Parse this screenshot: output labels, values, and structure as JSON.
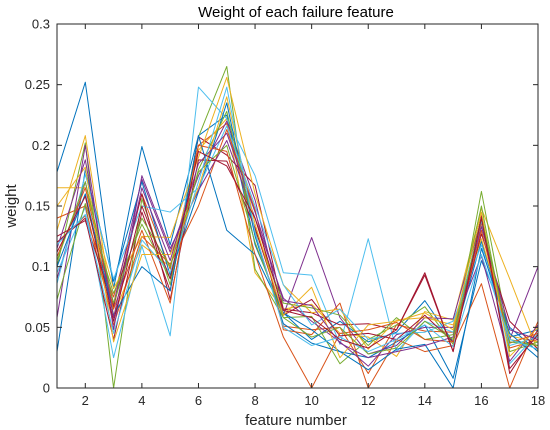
{
  "chart_data": {
    "type": "line",
    "title": "Weight of each failure feature",
    "xlabel": "feature number",
    "ylabel": "weight",
    "xlim": [
      1,
      18
    ],
    "ylim": [
      0,
      0.3
    ],
    "xticks": [
      2,
      4,
      6,
      8,
      10,
      12,
      14,
      16,
      18
    ],
    "yticks": [
      0,
      0.05,
      0.1,
      0.15,
      0.2,
      0.25,
      0.3
    ],
    "ytick_labels": [
      "0",
      "0.05",
      "0.1",
      "0.15",
      "0.2",
      "0.25",
      "0.3"
    ],
    "grid": false,
    "box": true,
    "x": [
      1,
      2,
      3,
      4,
      5,
      6,
      7,
      8,
      9,
      10,
      11,
      12,
      13,
      14,
      15,
      16,
      17,
      18
    ],
    "series": [
      {
        "color": "#0072BD",
        "values": [
          0.178,
          0.252,
          0.082,
          0.199,
          0.118,
          0.208,
          0.225,
          0.118,
          0.062,
          0.04,
          0.055,
          0.038,
          0.046,
          0.072,
          0.038,
          0.121,
          0.042,
          0.048
        ]
      },
      {
        "color": "#D95319",
        "values": [
          0.12,
          0.142,
          0.075,
          0.16,
          0.098,
          0.2,
          0.218,
          0.128,
          0.051,
          0.048,
          0.05,
          0.012,
          0.052,
          0.047,
          0.046,
          0.136,
          0.033,
          0.04
        ]
      },
      {
        "color": "#EDB120",
        "values": [
          0.13,
          0.208,
          0.06,
          0.118,
          0.1,
          0.196,
          0.222,
          0.095,
          0.065,
          0.069,
          0.045,
          0.042,
          0.026,
          0.063,
          0.056,
          0.148,
          0.09,
          0.03
        ]
      },
      {
        "color": "#7E2F8E",
        "values": [
          0.09,
          0.17,
          0.069,
          0.172,
          0.112,
          0.175,
          0.22,
          0.155,
          0.06,
          0.124,
          0.058,
          0.028,
          0.035,
          0.058,
          0.057,
          0.139,
          0.04,
          0.1
        ]
      },
      {
        "color": "#77AC30",
        "values": [
          0.1,
          0.202,
          0.0,
          0.156,
          0.085,
          0.207,
          0.265,
          0.098,
          0.058,
          0.059,
          0.02,
          0.04,
          0.052,
          0.067,
          0.036,
          0.162,
          0.04,
          0.035
        ]
      },
      {
        "color": "#4DBEEE",
        "values": [
          0.095,
          0.149,
          0.025,
          0.117,
          0.043,
          0.248,
          0.222,
          0.175,
          0.095,
          0.093,
          0.036,
          0.123,
          0.03,
          0.055,
          0.046,
          0.138,
          0.02,
          0.045
        ]
      },
      {
        "color": "#A2142F",
        "values": [
          0.12,
          0.14,
          0.04,
          0.145,
          0.08,
          0.207,
          0.192,
          0.167,
          0.065,
          0.062,
          0.052,
          0.053,
          0.048,
          0.095,
          0.03,
          0.142,
          0.012,
          0.048
        ]
      },
      {
        "color": "#0072BD",
        "values": [
          0.03,
          0.18,
          0.088,
          0.17,
          0.093,
          0.162,
          0.235,
          0.125,
          0.053,
          0.037,
          0.03,
          0.025,
          0.038,
          0.052,
          0.008,
          0.105,
          0.05,
          0.03
        ]
      },
      {
        "color": "#D95319",
        "values": [
          0.14,
          0.15,
          0.052,
          0.125,
          0.102,
          0.15,
          0.213,
          0.147,
          0.048,
          0.044,
          0.07,
          0.0,
          0.04,
          0.03,
          0.035,
          0.086,
          0.0,
          0.055
        ]
      },
      {
        "color": "#EDB120",
        "values": [
          0.165,
          0.165,
          0.082,
          0.125,
          0.124,
          0.19,
          0.256,
          0.16,
          0.085,
          0.062,
          0.065,
          0.032,
          0.056,
          0.058,
          0.052,
          0.123,
          0.043,
          0.038
        ]
      },
      {
        "color": "#7E2F8E",
        "values": [
          0.058,
          0.2,
          0.048,
          0.175,
          0.115,
          0.163,
          0.204,
          0.14,
          0.074,
          0.055,
          0.038,
          0.018,
          0.044,
          0.05,
          0.05,
          0.109,
          0.022,
          0.052
        ]
      },
      {
        "color": "#77AC30",
        "values": [
          0.073,
          0.152,
          0.078,
          0.135,
          0.09,
          0.18,
          0.228,
          0.13,
          0.07,
          0.066,
          0.06,
          0.035,
          0.058,
          0.04,
          0.044,
          0.15,
          0.03,
          0.038
        ]
      },
      {
        "color": "#4DBEEE",
        "values": [
          0.086,
          0.176,
          0.09,
          0.15,
          0.145,
          0.165,
          0.216,
          0.15,
          0.085,
          0.052,
          0.065,
          0.04,
          0.045,
          0.046,
          0.055,
          0.118,
          0.035,
          0.042
        ]
      },
      {
        "color": "#A2142F",
        "values": [
          0.125,
          0.138,
          0.067,
          0.16,
          0.073,
          0.188,
          0.187,
          0.132,
          0.06,
          0.073,
          0.043,
          0.045,
          0.04,
          0.06,
          0.038,
          0.127,
          0.055,
          0.032
        ]
      },
      {
        "color": "#0072BD",
        "values": [
          0.1,
          0.16,
          0.06,
          0.1,
          0.08,
          0.208,
          0.13,
          0.11,
          0.062,
          0.048,
          0.03,
          0.015,
          0.032,
          0.036,
          0.0,
          0.115,
          0.045,
          0.025
        ]
      },
      {
        "color": "#D95319",
        "values": [
          0.108,
          0.165,
          0.065,
          0.13,
          0.07,
          0.2,
          0.195,
          0.11,
          0.042,
          0.0,
          0.045,
          0.048,
          0.054,
          0.04,
          0.038,
          0.13,
          0.037,
          0.045
        ]
      },
      {
        "color": "#EDB120",
        "values": [
          0.15,
          0.182,
          0.038,
          0.11,
          0.11,
          0.165,
          0.24,
          0.135,
          0.06,
          0.083,
          0.025,
          0.052,
          0.055,
          0.062,
          0.048,
          0.145,
          0.026,
          0.05
        ]
      },
      {
        "color": "#7E2F8E",
        "values": [
          0.115,
          0.188,
          0.058,
          0.165,
          0.105,
          0.185,
          0.21,
          0.145,
          0.072,
          0.068,
          0.037,
          0.025,
          0.03,
          0.035,
          0.042,
          0.133,
          0.048,
          0.04
        ]
      },
      {
        "color": "#77AC30",
        "values": [
          0.105,
          0.17,
          0.07,
          0.14,
          0.1,
          0.178,
          0.2,
          0.12,
          0.058,
          0.042,
          0.05,
          0.028,
          0.033,
          0.055,
          0.04,
          0.14,
          0.038,
          0.035
        ]
      },
      {
        "color": "#4DBEEE",
        "values": [
          0.118,
          0.143,
          0.045,
          0.122,
          0.095,
          0.17,
          0.248,
          0.128,
          0.05,
          0.035,
          0.042,
          0.03,
          0.04,
          0.052,
          0.034,
          0.11,
          0.04,
          0.032
        ]
      },
      {
        "color": "#A2142F",
        "values": [
          0.112,
          0.158,
          0.055,
          0.15,
          0.09,
          0.195,
          0.183,
          0.14,
          0.064,
          0.058,
          0.04,
          0.033,
          0.048,
          0.093,
          0.03,
          0.14,
          0.016,
          0.044
        ]
      }
    ]
  }
}
